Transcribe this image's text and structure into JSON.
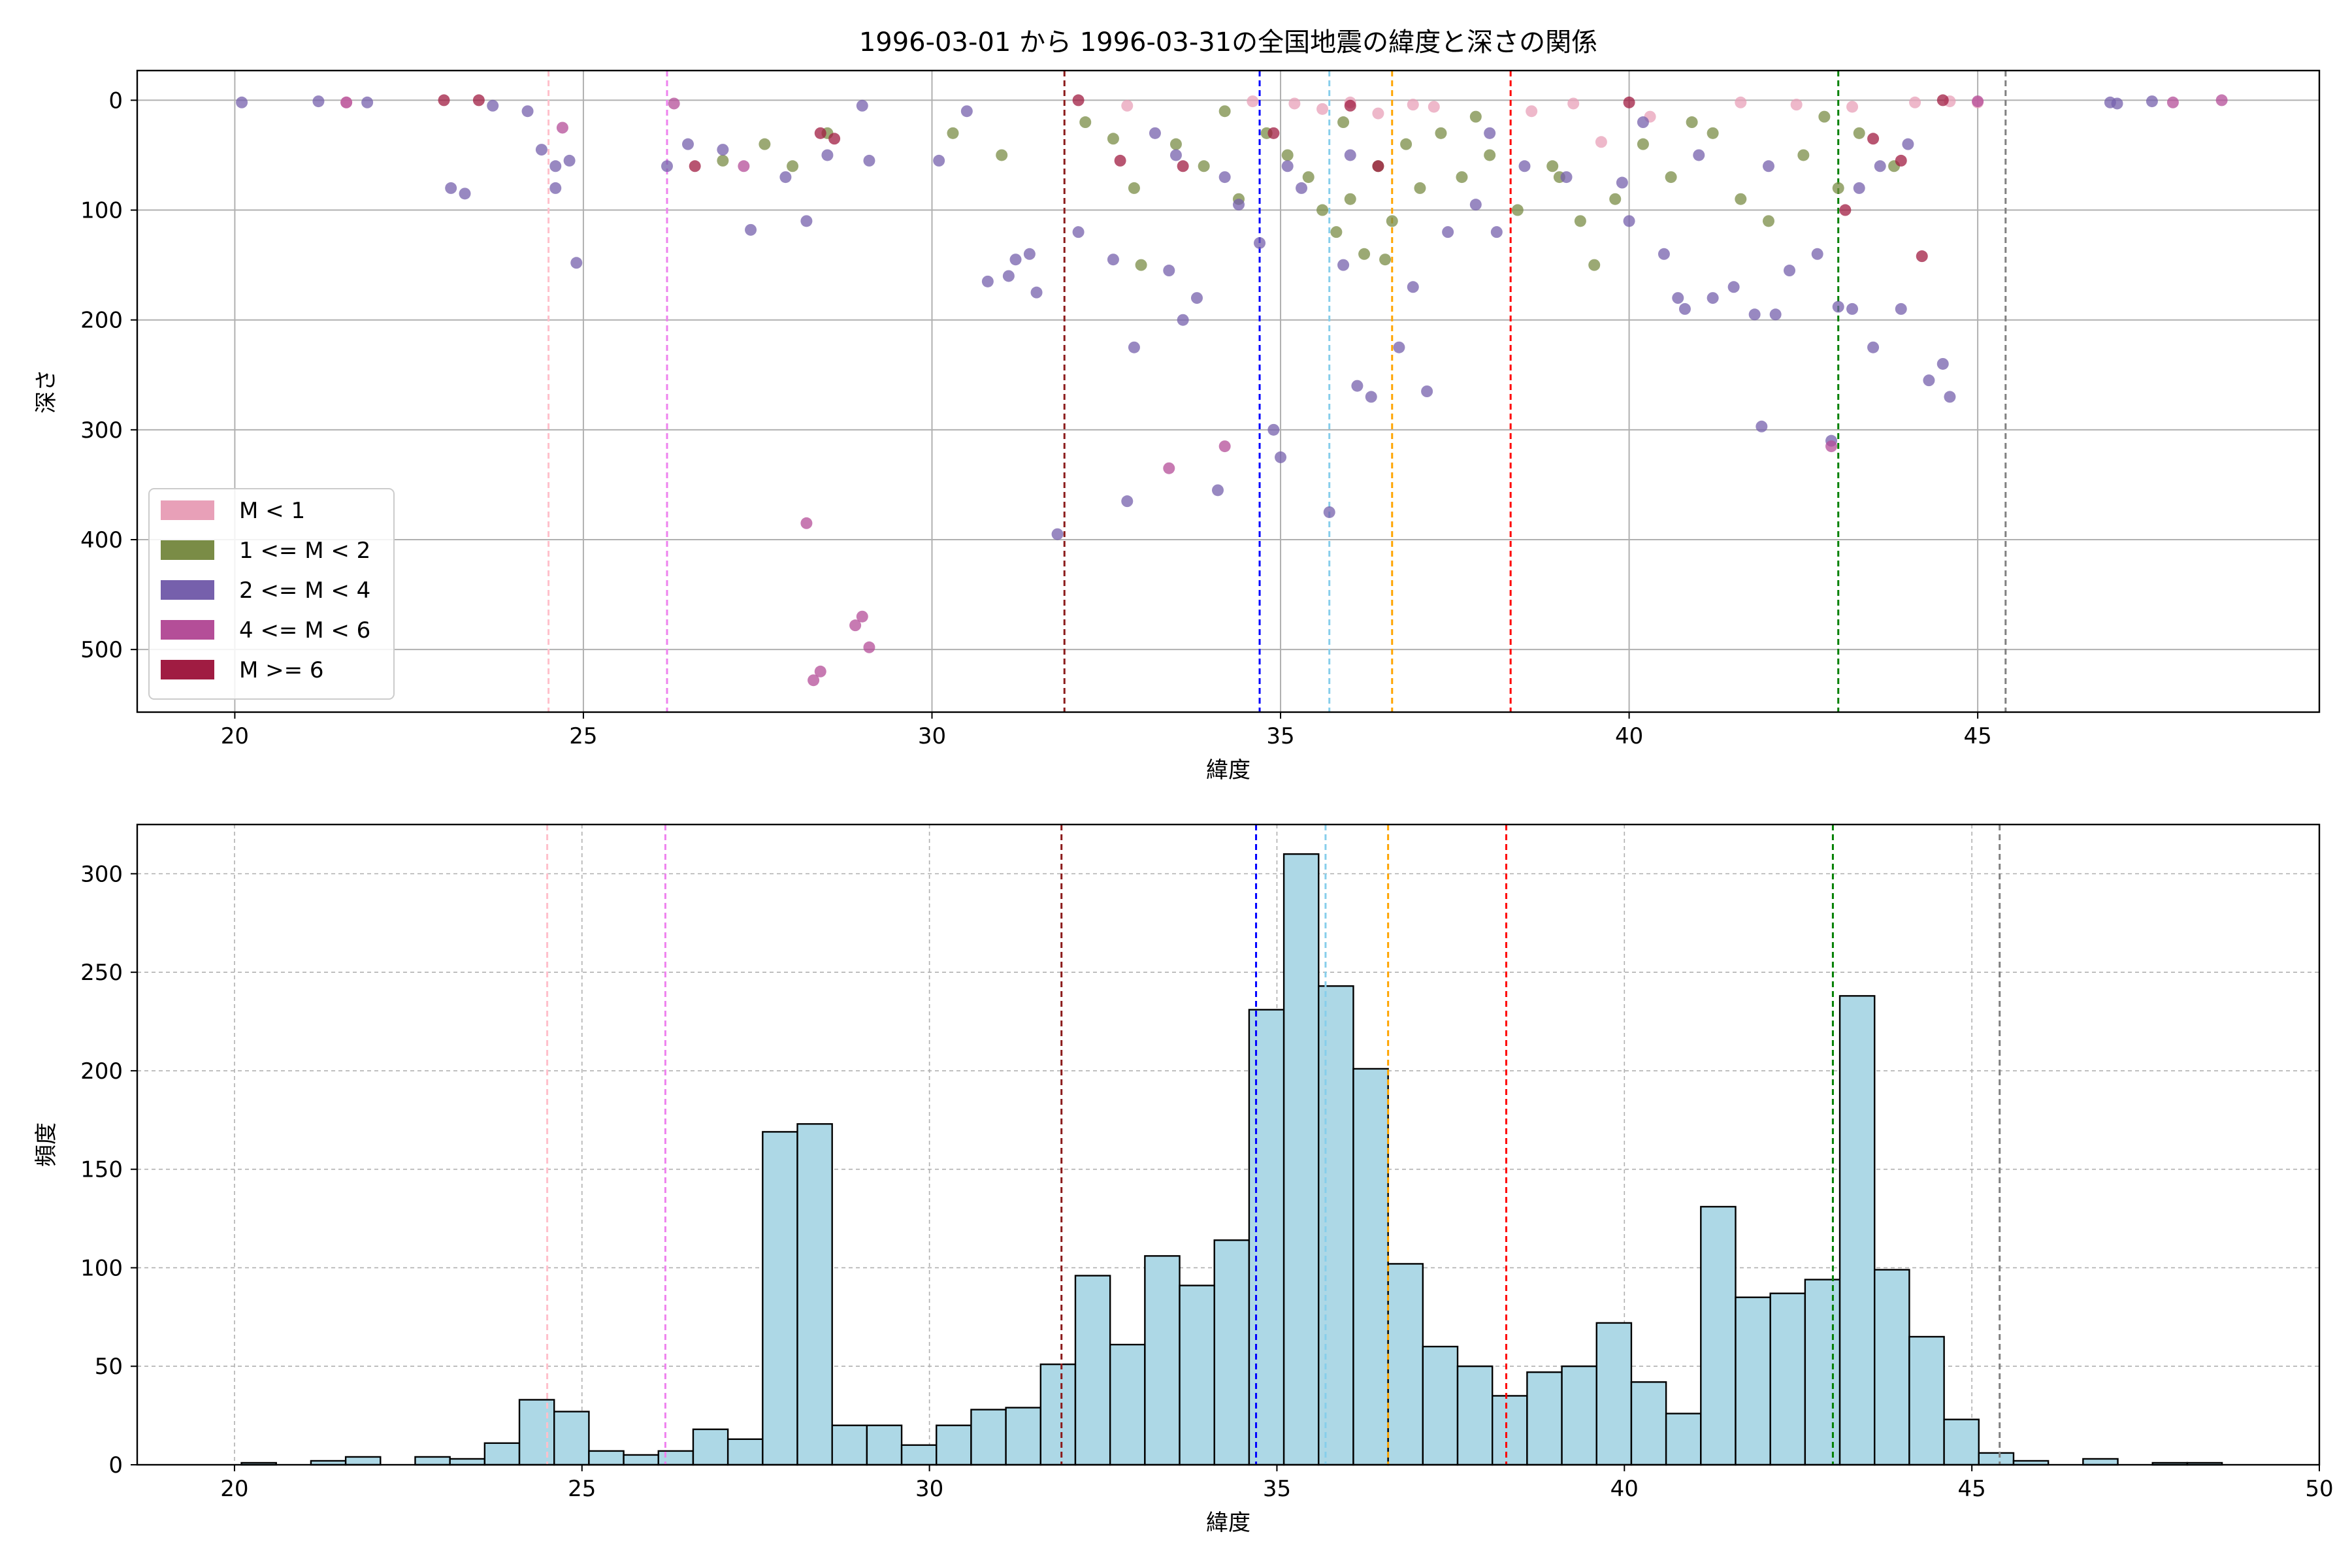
{
  "figure": {
    "title": "1996-03-01 から 1996-03-31の全国地震の緯度と深さの関係"
  },
  "colors": {
    "m_lt_1": "#e8a0b8",
    "m_1_2": "#7a8c46",
    "m_2_4": "#7660ac",
    "m_4_6": "#b44e98",
    "m_ge_6": "#a01c42",
    "hist_fill": "#add8e6",
    "grid": "#b0b0b0"
  },
  "chart_data": [
    {
      "type": "scatter",
      "xlabel": "緯度",
      "ylabel": "深さ",
      "xlim": [
        18.6,
        49.9
      ],
      "ylim": [
        557,
        -27
      ],
      "y_inverted": true,
      "grid": "solid",
      "legend_position": "lower-left",
      "xticks": [
        20,
        25,
        30,
        35,
        40,
        45
      ],
      "yticks": [
        0,
        100,
        200,
        300,
        400,
        500
      ],
      "legend": [
        "M < 1",
        "1 <= M < 2",
        "2 <= M < 4",
        "4 <= M < 6",
        "M >= 6"
      ],
      "vlines": [
        {
          "x": 24.5,
          "color": "#ffc0cb"
        },
        {
          "x": 26.2,
          "color": "#ee82ee"
        },
        {
          "x": 31.9,
          "color": "#8b1a1a"
        },
        {
          "x": 34.7,
          "color": "#0000ff"
        },
        {
          "x": 35.7,
          "color": "#87ceeb"
        },
        {
          "x": 36.6,
          "color": "#ffa500"
        },
        {
          "x": 38.3,
          "color": "#ff0000"
        },
        {
          "x": 43.0,
          "color": "#008000"
        },
        {
          "x": 45.4,
          "color": "#808080"
        }
      ],
      "series": [
        {
          "name": "M < 1",
          "color": "#e8a0b8",
          "points": [
            [
              21.6,
              2
            ],
            [
              32.8,
              5
            ],
            [
              34.6,
              1
            ],
            [
              35.2,
              3
            ],
            [
              35.6,
              8
            ],
            [
              36.0,
              2
            ],
            [
              36.4,
              12
            ],
            [
              36.9,
              4
            ],
            [
              37.2,
              6
            ],
            [
              38.6,
              10
            ],
            [
              39.2,
              3
            ],
            [
              39.6,
              38
            ],
            [
              40.3,
              15
            ],
            [
              41.6,
              2
            ],
            [
              42.4,
              4
            ],
            [
              43.2,
              6
            ],
            [
              44.1,
              2
            ],
            [
              44.6,
              1
            ],
            [
              45.0,
              2
            ]
          ]
        },
        {
          "name": "1 <= M < 2",
          "color": "#7a8c46",
          "points": [
            [
              27.0,
              55
            ],
            [
              27.6,
              40
            ],
            [
              28.0,
              60
            ],
            [
              28.5,
              30
            ],
            [
              30.3,
              30
            ],
            [
              31.0,
              50
            ],
            [
              32.2,
              20
            ],
            [
              32.6,
              35
            ],
            [
              32.9,
              80
            ],
            [
              33.5,
              40
            ],
            [
              33.9,
              60
            ],
            [
              34.4,
              90
            ],
            [
              34.8,
              30
            ],
            [
              35.1,
              50
            ],
            [
              35.4,
              70
            ],
            [
              35.6,
              100
            ],
            [
              35.8,
              120
            ],
            [
              36.0,
              90
            ],
            [
              36.2,
              140
            ],
            [
              36.4,
              60
            ],
            [
              36.6,
              110
            ],
            [
              36.8,
              40
            ],
            [
              37.0,
              80
            ],
            [
              37.3,
              30
            ],
            [
              37.6,
              70
            ],
            [
              38.0,
              50
            ],
            [
              38.4,
              100
            ],
            [
              38.9,
              60
            ],
            [
              39.3,
              110
            ],
            [
              39.5,
              150
            ],
            [
              39.8,
              90
            ],
            [
              40.2,
              40
            ],
            [
              40.6,
              70
            ],
            [
              41.2,
              30
            ],
            [
              41.6,
              90
            ],
            [
              42.0,
              110
            ],
            [
              42.5,
              50
            ],
            [
              43.0,
              80
            ],
            [
              43.3,
              30
            ],
            [
              43.8,
              60
            ],
            [
              34.2,
              10
            ],
            [
              35.9,
              20
            ],
            [
              37.8,
              15
            ],
            [
              40.9,
              20
            ],
            [
              42.8,
              15
            ],
            [
              33.0,
              150
            ],
            [
              36.5,
              145
            ],
            [
              39.0,
              70
            ]
          ]
        },
        {
          "name": "2 <= M < 4",
          "color": "#7660ac",
          "points": [
            [
              20.1,
              2
            ],
            [
              21.2,
              1
            ],
            [
              21.9,
              2
            ],
            [
              23.1,
              80
            ],
            [
              23.3,
              85
            ],
            [
              23.7,
              5
            ],
            [
              24.2,
              10
            ],
            [
              24.4,
              45
            ],
            [
              24.6,
              60
            ],
            [
              24.8,
              55
            ],
            [
              24.6,
              80
            ],
            [
              24.9,
              148
            ],
            [
              26.2,
              60
            ],
            [
              26.5,
              40
            ],
            [
              27.0,
              45
            ],
            [
              27.4,
              118
            ],
            [
              27.9,
              70
            ],
            [
              28.2,
              110
            ],
            [
              28.5,
              50
            ],
            [
              29.1,
              55
            ],
            [
              30.1,
              55
            ],
            [
              30.8,
              165
            ],
            [
              31.1,
              160
            ],
            [
              31.2,
              145
            ],
            [
              31.4,
              140
            ],
            [
              31.5,
              175
            ],
            [
              31.8,
              395
            ],
            [
              32.1,
              120
            ],
            [
              32.6,
              145
            ],
            [
              32.8,
              365
            ],
            [
              32.9,
              225
            ],
            [
              33.4,
              155
            ],
            [
              33.5,
              50
            ],
            [
              33.6,
              200
            ],
            [
              33.8,
              180
            ],
            [
              34.1,
              355
            ],
            [
              34.2,
              70
            ],
            [
              34.4,
              95
            ],
            [
              34.7,
              130
            ],
            [
              34.9,
              300
            ],
            [
              35.0,
              325
            ],
            [
              35.1,
              60
            ],
            [
              35.3,
              80
            ],
            [
              35.7,
              375
            ],
            [
              35.9,
              150
            ],
            [
              36.1,
              260
            ],
            [
              36.3,
              270
            ],
            [
              36.7,
              225
            ],
            [
              36.9,
              170
            ],
            [
              37.1,
              265
            ],
            [
              37.4,
              120
            ],
            [
              37.8,
              95
            ],
            [
              38.1,
              120
            ],
            [
              38.5,
              60
            ],
            [
              39.1,
              70
            ],
            [
              39.9,
              75
            ],
            [
              40.0,
              110
            ],
            [
              40.5,
              140
            ],
            [
              40.7,
              180
            ],
            [
              40.8,
              190
            ],
            [
              41.2,
              180
            ],
            [
              41.5,
              170
            ],
            [
              41.8,
              195
            ],
            [
              41.9,
              297
            ],
            [
              42.1,
              195
            ],
            [
              42.3,
              155
            ],
            [
              42.7,
              140
            ],
            [
              42.9,
              310
            ],
            [
              43.0,
              188
            ],
            [
              43.2,
              190
            ],
            [
              43.5,
              225
            ],
            [
              43.9,
              190
            ],
            [
              44.3,
              255
            ],
            [
              44.5,
              240
            ],
            [
              44.6,
              270
            ],
            [
              43.3,
              80
            ],
            [
              43.6,
              60
            ],
            [
              44.0,
              40
            ],
            [
              42.0,
              60
            ],
            [
              41.0,
              50
            ],
            [
              40.2,
              20
            ],
            [
              38.0,
              30
            ],
            [
              36.0,
              50
            ],
            [
              33.2,
              30
            ],
            [
              30.5,
              10
            ],
            [
              29.0,
              5
            ],
            [
              46.9,
              2
            ],
            [
              47.5,
              1
            ],
            [
              47.0,
              3
            ]
          ]
        },
        {
          "name": "4 <= M < 6",
          "color": "#b44e98",
          "points": [
            [
              21.6,
              2
            ],
            [
              24.7,
              25
            ],
            [
              26.3,
              3
            ],
            [
              27.3,
              60
            ],
            [
              28.2,
              385
            ],
            [
              28.3,
              528
            ],
            [
              28.4,
              520
            ],
            [
              28.9,
              478
            ],
            [
              29.0,
              470
            ],
            [
              29.1,
              498
            ],
            [
              33.4,
              335
            ],
            [
              34.2,
              315
            ],
            [
              42.9,
              315
            ],
            [
              45.0,
              1
            ],
            [
              47.8,
              2
            ],
            [
              48.5,
              0
            ]
          ]
        },
        {
          "name": "M >= 6",
          "color": "#a01c42",
          "points": [
            [
              23.0,
              0
            ],
            [
              23.5,
              0
            ],
            [
              26.6,
              60
            ],
            [
              28.4,
              30
            ],
            [
              28.6,
              35
            ],
            [
              32.1,
              0
            ],
            [
              32.7,
              55
            ],
            [
              33.6,
              60
            ],
            [
              34.9,
              30
            ],
            [
              36.4,
              60
            ],
            [
              43.1,
              100
            ],
            [
              43.5,
              35
            ],
            [
              43.9,
              55
            ],
            [
              44.2,
              142
            ],
            [
              36.0,
              5
            ],
            [
              40.0,
              2
            ],
            [
              44.5,
              0
            ]
          ]
        }
      ]
    },
    {
      "type": "bar",
      "xlabel": "緯度",
      "ylabel": "頻度",
      "xlim": [
        18.6,
        50.0
      ],
      "ylim": [
        0,
        325
      ],
      "grid": "dashed",
      "xticks": [
        20,
        25,
        30,
        35,
        40,
        45,
        50
      ],
      "yticks": [
        0,
        50,
        100,
        150,
        200,
        250,
        300
      ],
      "bin_start": 20.1,
      "bin_width": 0.5,
      "values": [
        1,
        0,
        2,
        4,
        0,
        4,
        3,
        11,
        33,
        27,
        7,
        5,
        7,
        18,
        13,
        169,
        173,
        20,
        20,
        10,
        20,
        28,
        29,
        51,
        96,
        61,
        106,
        91,
        114,
        231,
        310,
        243,
        201,
        102,
        60,
        50,
        35,
        47,
        50,
        72,
        42,
        26,
        131,
        85,
        87,
        94,
        238,
        99,
        65,
        23,
        6,
        2,
        0,
        3,
        0,
        1,
        1,
        0
      ],
      "vlines": [
        {
          "x": 24.5,
          "color": "#ffc0cb"
        },
        {
          "x": 26.2,
          "color": "#ee82ee"
        },
        {
          "x": 31.9,
          "color": "#8b1a1a"
        },
        {
          "x": 34.7,
          "color": "#0000ff"
        },
        {
          "x": 35.7,
          "color": "#87ceeb"
        },
        {
          "x": 36.6,
          "color": "#ffa500"
        },
        {
          "x": 38.3,
          "color": "#ff0000"
        },
        {
          "x": 43.0,
          "color": "#008000"
        },
        {
          "x": 45.4,
          "color": "#808080"
        }
      ]
    }
  ]
}
